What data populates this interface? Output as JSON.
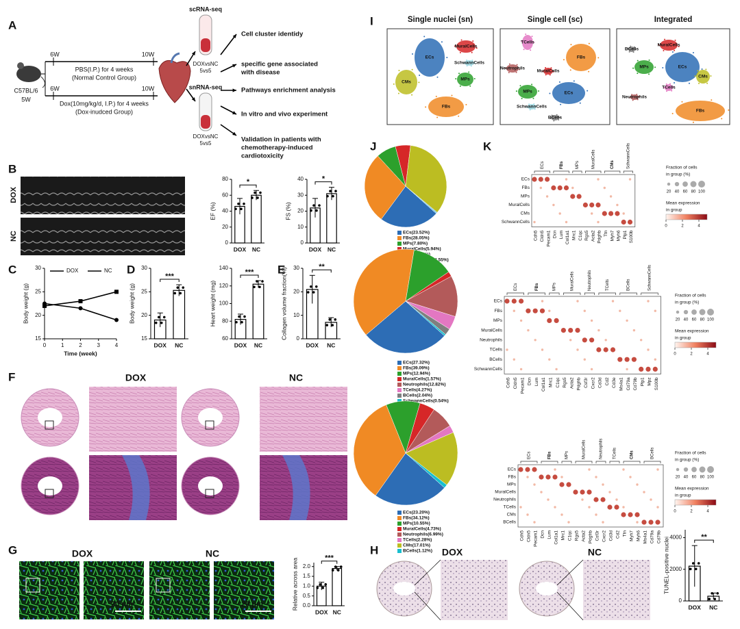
{
  "panel_labels": [
    "A",
    "B",
    "C",
    "D",
    "E",
    "F",
    "G",
    "H",
    "I",
    "J",
    "K"
  ],
  "design": {
    "mouse": "C57BL/6",
    "age": "5W",
    "groups": [
      {
        "start": "6W",
        "end": "10W",
        "treatment": "PBS(I.P.) for 4 weeks",
        "group": "(Normal Control Group)"
      },
      {
        "start": "6W",
        "end": "10W",
        "treatment": "Dox(10mg/kg/d, I.P.) for 4 weeks",
        "group": "(Dox-inudced Group)"
      }
    ],
    "assays": [
      {
        "name": "scRNA-seq",
        "comparison": "DOXvsNC",
        "n": "5vs5"
      },
      {
        "name": "snRNA-seq",
        "comparison": "DOXvsNC",
        "n": "5vs5"
      }
    ],
    "steps": [
      [
        "Cell cluster identidy"
      ],
      [
        "specific gene associated",
        "with disease"
      ],
      [
        "Pathways enrichment analysis"
      ],
      [
        "In vitro and vivo experiment"
      ],
      [
        "Validation in patients with",
        "chemotherapy-induced",
        "cardiotoxicity"
      ]
    ]
  },
  "umap": [
    {
      "title": "Single nuclei (sn)",
      "clusters": [
        {
          "name": "ECs",
          "color": "#2d6db5"
        },
        {
          "name": "MuralCells",
          "color": "#d62728"
        },
        {
          "name": "SchwannCells",
          "color": "#9edae5"
        },
        {
          "name": "CMs",
          "color": "#bcbd22"
        },
        {
          "name": "MPs",
          "color": "#2ca02c"
        },
        {
          "name": "FBs",
          "color": "#f08a24"
        }
      ]
    },
    {
      "title": "Single cell (sc)",
      "clusters": [
        {
          "name": "TCells",
          "color": "#e377c2"
        },
        {
          "name": "Neutrophils",
          "color": "#b35a5a"
        },
        {
          "name": "MuralCells",
          "color": "#d62728"
        },
        {
          "name": "FBs",
          "color": "#f08a24"
        },
        {
          "name": "MPs",
          "color": "#2ca02c"
        },
        {
          "name": "ECs",
          "color": "#2d6db5"
        },
        {
          "name": "SchwannCells",
          "color": "#9edae5"
        },
        {
          "name": "BCells",
          "color": "#7f7f7f"
        }
      ]
    },
    {
      "title": "Integrated",
      "clusters": [
        {
          "name": "BCells",
          "color": "#7f7f7f"
        },
        {
          "name": "MuralCells",
          "color": "#d62728"
        },
        {
          "name": "ECs",
          "color": "#2d6db5"
        },
        {
          "name": "MPs",
          "color": "#2ca02c"
        },
        {
          "name": "CMs",
          "color": "#bcbd22"
        },
        {
          "name": "TCells",
          "color": "#e377c2"
        },
        {
          "name": "Neutrophils",
          "color": "#b35a5a"
        },
        {
          "name": "FBs",
          "color": "#f08a24"
        }
      ]
    }
  ],
  "images": {
    "echo": [
      "DOX",
      "NC"
    ],
    "histology": [
      "DOX",
      "NC"
    ],
    "fluorescence": [
      "DOX",
      "NC"
    ],
    "scale_bars": [
      "20 μm",
      "20 μm"
    ],
    "tunel": [
      "DOX",
      "NC"
    ]
  },
  "chart_data": [
    {
      "type": "bar",
      "ylabel": "EF (%)",
      "categories": [
        "DOX",
        "NC"
      ],
      "values": [
        46,
        60
      ],
      "errors": [
        10,
        6
      ],
      "ylim": [
        0,
        80
      ],
      "yticks": [
        0,
        20,
        40,
        60,
        80
      ],
      "color": "#000000",
      "significance": "*"
    },
    {
      "type": "bar",
      "ylabel": "FS (%)",
      "categories": [
        "DOX",
        "NC"
      ],
      "values": [
        22,
        31
      ],
      "errors": [
        6,
        4
      ],
      "ylim": [
        0,
        40
      ],
      "yticks": [
        0,
        10,
        20,
        30,
        40
      ],
      "color": "#000000",
      "significance": "*"
    },
    {
      "type": "line",
      "xlabel": "Time (week)",
      "ylabel": "Body weight (g)",
      "x": [
        0,
        2,
        4
      ],
      "xlim": [
        0,
        4
      ],
      "xticks": [
        0,
        1,
        2,
        3,
        4
      ],
      "ylim": [
        15,
        30
      ],
      "yticks": [
        15,
        20,
        25,
        30
      ],
      "series": [
        {
          "name": "DOX",
          "color": "#000000",
          "values": [
            22.5,
            21.5,
            19
          ]
        },
        {
          "name": "NC",
          "color": "#000000",
          "values": [
            22,
            23,
            25
          ]
        }
      ]
    },
    {
      "type": "bar",
      "ylabel": "Body weight (g)",
      "categories": [
        "DOX",
        "NC"
      ],
      "values": [
        19,
        25.3
      ],
      "errors": [
        1.5,
        1.2
      ],
      "ylim": [
        15,
        30
      ],
      "yticks": [
        15,
        20,
        25,
        30
      ],
      "color": "#000000",
      "significance": "***"
    },
    {
      "type": "bar",
      "ylabel": "Heart weight (mg)",
      "categories": [
        "DOX",
        "NC"
      ],
      "values": [
        82,
        122
      ],
      "errors": [
        6,
        4
      ],
      "ylim": [
        60,
        140
      ],
      "yticks": [
        60,
        80,
        100,
        120,
        140
      ],
      "color": "#000000",
      "significance": "***"
    },
    {
      "type": "bar",
      "ylabel": "Collagen volume fraction(%)",
      "categories": [
        "DOX",
        "NC"
      ],
      "values": [
        21,
        7
      ],
      "errors": [
        6,
        2
      ],
      "ylim": [
        0,
        30
      ],
      "yticks": [
        0,
        10,
        20,
        30
      ],
      "color": "#000000",
      "significance": "**"
    },
    {
      "type": "bar",
      "ylabel": "Relative across area",
      "categories": [
        "DOX",
        "NC"
      ],
      "values": [
        1.0,
        1.9
      ],
      "errors": [
        0.2,
        0.1
      ],
      "ylim": [
        0,
        2.2
      ],
      "yticks": [
        {
          "value": 0,
          "label": "0.0"
        },
        {
          "value": 0.5,
          "label": "0.5"
        },
        {
          "value": 1,
          "label": "1.0"
        },
        {
          "value": 1.5,
          "label": "1.5"
        },
        {
          "value": 2,
          "label": "2.0"
        }
      ],
      "color": "#000000",
      "significance": "***"
    },
    {
      "type": "bar",
      "ylabel": "TUNEL-positive nuclei",
      "categories": [
        "DOX",
        "NC"
      ],
      "values": [
        2200,
        300
      ],
      "errors": [
        1300,
        200
      ],
      "ylim": [
        0,
        4500
      ],
      "yticks": [
        0,
        2000,
        4000
      ],
      "color": "#000000",
      "significance": "**"
    },
    {
      "type": "pie",
      "categories": [
        "ECs",
        "FBs",
        "MPs",
        "MuralCells",
        "CMs",
        "SchwannCells"
      ],
      "values": [
        23.52,
        28.05,
        7.8,
        5.94,
        34.14,
        0.55
      ],
      "value_labels": [
        "ECs(23.52%)",
        "FBs(28.05%)",
        "MPs(7.80%)",
        "MuralCells(5.94%)",
        "CMs(34.14%)",
        "SchwannCells(0.55%)"
      ],
      "colors": [
        "#2d6db5",
        "#f08a24",
        "#2ca02c",
        "#d62728",
        "#bcbd22",
        "#7fc8e8"
      ]
    },
    {
      "type": "pie",
      "categories": [
        "ECs",
        "FBs",
        "MPs",
        "MuralCells",
        "Neutrophils",
        "TCells",
        "BCells",
        "SchwannCells"
      ],
      "values": [
        27.32,
        39.09,
        12.94,
        1.57,
        12.82,
        4.27,
        2.04,
        0.54
      ],
      "value_labels": [
        "ECs(27.32%)",
        "FBs(39.09%)",
        "MPs(12.94%)",
        "MuralCells(1.57%)",
        "Neutrophils(12.82%)",
        "TCells(4.27%)",
        "BCells(2.04%)",
        "SchwannCells(0.54%)"
      ],
      "colors": [
        "#2d6db5",
        "#f08a24",
        "#2ca02c",
        "#d62728",
        "#b35a5a",
        "#e377c2",
        "#7f7f7f",
        "#17becf"
      ]
    },
    {
      "type": "pie",
      "categories": [
        "ECs",
        "FBs",
        "MPs",
        "MuralCells",
        "Neutrophils",
        "TCells",
        "CMs",
        "BCells"
      ],
      "values": [
        23.2,
        34.12,
        10.55,
        4.73,
        6.99,
        2.28,
        17.01,
        1.12
      ],
      "value_labels": [
        "ECs(23.20%)",
        "FBs(34.12%)",
        "MPs(10.55%)",
        "MuralCells(4.73%)",
        "Neutrophils(6.99%)",
        "TCells(2.28%)",
        "CMs(17.01%)",
        "BCells(1.12%)"
      ],
      "colors": [
        "#2d6db5",
        "#f08a24",
        "#2ca02c",
        "#d62728",
        "#b35a5a",
        "#e377c2",
        "#bcbd22",
        "#17becf"
      ]
    }
  ],
  "dotplots": [
    {
      "groups": [
        {
          "name": "ECs",
          "genes": [
            "Cdh5",
            "Cldn5",
            "Pecam1"
          ]
        },
        {
          "name": "FBs",
          "genes": [
            "Dcn",
            "Lum",
            "Col1a1"
          ]
        },
        {
          "name": "MPs",
          "genes": [
            "Mrc1",
            "C1qc"
          ]
        },
        {
          "name": "MuralCells",
          "genes": [
            "Rgs5",
            "Acta2",
            "Pdgfrb"
          ]
        },
        {
          "name": "CMs",
          "genes": [
            "Ttn",
            "Myh7",
            "Myh6"
          ]
        },
        {
          "name": "SchwannCells",
          "genes": [
            "Plp1",
            "S100b"
          ]
        }
      ],
      "rows": [
        "ECs",
        "FBs",
        "MPs",
        "MuralCells",
        "CMs",
        "SchwannCells"
      ],
      "size_title": [
        "Fraction of cells",
        "in group (%)"
      ],
      "size_ticks": [
        20,
        40,
        60,
        80,
        100
      ],
      "color_title": [
        "Mean expression",
        "in group"
      ],
      "color_ticks": [
        0,
        2,
        4
      ],
      "color_lim": [
        0,
        5
      ]
    },
    {
      "groups": [
        {
          "name": "ECs",
          "genes": [
            "Cdh5",
            "Cldn5",
            "Pecam1"
          ]
        },
        {
          "name": "FBs",
          "genes": [
            "Dcn",
            "Lum",
            "Col1a1"
          ]
        },
        {
          "name": "MPs",
          "genes": [
            "Mrc1",
            "C1qc"
          ]
        },
        {
          "name": "MuralCells",
          "genes": [
            "Rgs5",
            "Acta2",
            "Pdgfrb"
          ]
        },
        {
          "name": "Neutrophils",
          "genes": [
            "Csf3r",
            "Cxcr2"
          ]
        },
        {
          "name": "TCells",
          "genes": [
            "Cd3d",
            "Cd2",
            "Cd3e"
          ]
        },
        {
          "name": "BCells",
          "genes": [
            "Ms4a1",
            "Cd79a",
            "Cd79b"
          ]
        },
        {
          "name": "SchwannCells",
          "genes": [
            "Plp1",
            "Mpz",
            "S100b"
          ]
        }
      ],
      "rows": [
        "ECs",
        "FBs",
        "MPs",
        "MuralCells",
        "Neutrophils",
        "TCells",
        "BCells",
        "SchwannCells"
      ],
      "size_title": [
        "Fraction of cells",
        "in group (%)"
      ],
      "size_ticks": [
        20,
        40,
        60,
        80,
        100
      ],
      "color_title": [
        "Mean expression",
        "in group"
      ],
      "color_ticks": [
        0,
        2,
        4
      ],
      "color_lim": [
        0,
        5
      ]
    },
    {
      "groups": [
        {
          "name": "ECs",
          "genes": [
            "Cdh5",
            "Cldn5",
            "Pecam1"
          ]
        },
        {
          "name": "FBs",
          "genes": [
            "Dcn",
            "Lum",
            "Col1a1"
          ]
        },
        {
          "name": "MPs",
          "genes": [
            "Mrc1",
            "C1qc"
          ]
        },
        {
          "name": "MuralCells",
          "genes": [
            "Rgs5",
            "Acta2",
            "Pdgfrb"
          ]
        },
        {
          "name": "Neutrophils",
          "genes": [
            "Csf3r",
            "Cxcr2"
          ]
        },
        {
          "name": "TCells",
          "genes": [
            "Cd3d",
            "Cd2"
          ]
        },
        {
          "name": "CMs",
          "genes": [
            "Ttn",
            "Myh7",
            "Myh6"
          ]
        },
        {
          "name": "BCells",
          "genes": [
            "Ms4a1",
            "Cd79a",
            "Cd79b"
          ]
        }
      ],
      "rows": [
        "ECs",
        "FBs",
        "MPs",
        "MuralCells",
        "Neutrophils",
        "TCells",
        "CMs",
        "BCells"
      ],
      "size_title": [
        "Fraction of cells",
        "in group (%)"
      ],
      "size_ticks": [
        20,
        40,
        60,
        80,
        100
      ],
      "color_title": [
        "Mean expression",
        "in group"
      ],
      "color_ticks": [
        0,
        2,
        4
      ],
      "color_lim": [
        0,
        5
      ]
    }
  ]
}
